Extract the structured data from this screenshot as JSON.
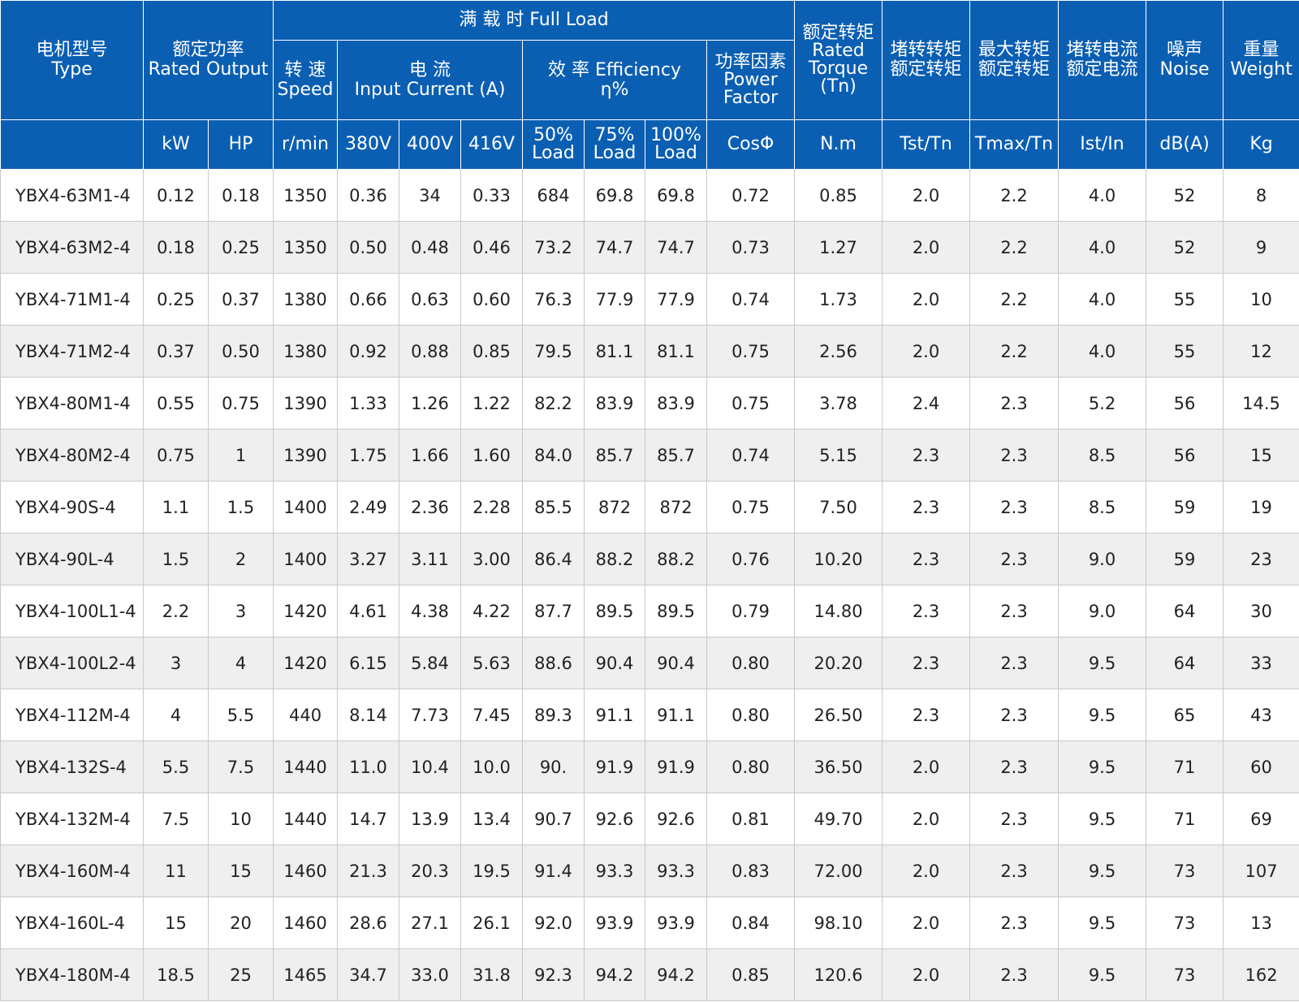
{
  "header": {
    "type": {
      "cn": "电机型号",
      "en": "Type"
    },
    "rated_output": {
      "cn": "额定功率",
      "en": "Rated Output"
    },
    "full_load": "满 载 时  Full Load",
    "speed": {
      "cn": "转 速",
      "en": "Speed"
    },
    "current": {
      "cn": "电 流",
      "en": "Input Current (A)"
    },
    "efficiency": {
      "cn": "效 率 Efficiency",
      "en": "η%"
    },
    "power_factor": {
      "cn": "功率因素",
      "en1": "Power",
      "en2": "Factor"
    },
    "rated_torque": {
      "cn": "额定转矩",
      "en1": "Rated",
      "en2": "Torque",
      "en3": "(Tn)"
    },
    "locked_torque": {
      "l1": "堵转转矩",
      "l2": "额定转矩"
    },
    "max_torque": {
      "l1": "最大转矩",
      "l2": "额定转矩"
    },
    "locked_current": {
      "l1": "堵转电流",
      "l2": "额定电流"
    },
    "noise": {
      "cn": "噪声",
      "en": "Noise"
    },
    "weight": {
      "cn": "重量",
      "en": "Weight"
    },
    "units": {
      "kw": "kW",
      "hp": "HP",
      "rpm": "r/min",
      "v380": "380V",
      "v400": "400V",
      "v416": "416V",
      "load50": {
        "l1": "50%",
        "l2": "Load"
      },
      "load75": {
        "l1": "75%",
        "l2": "Load"
      },
      "load100": {
        "l1": "100%",
        "l2": "Load"
      },
      "cos": "CosΦ",
      "nm": "N.m",
      "tst": "Tst/Tn",
      "tmax": "Tmax/Tn",
      "ist": "Ist/In",
      "dba": "dB(A)",
      "kg": "Kg"
    }
  },
  "rows": [
    [
      "YBX4-63M1-4",
      "0.12",
      "0.18",
      "1350",
      "0.36",
      "34",
      "0.33",
      "684",
      "69.8",
      "69.8",
      "0.72",
      "0.85",
      "2.0",
      "2.2",
      "4.0",
      "52",
      "8"
    ],
    [
      "YBX4-63M2-4",
      "0.18",
      "0.25",
      "1350",
      "0.50",
      "0.48",
      "0.46",
      "73.2",
      "74.7",
      "74.7",
      "0.73",
      "1.27",
      "2.0",
      "2.2",
      "4.0",
      "52",
      "9"
    ],
    [
      "YBX4-71M1-4",
      "0.25",
      "0.37",
      "1380",
      "0.66",
      "0.63",
      "0.60",
      "76.3",
      "77.9",
      "77.9",
      "0.74",
      "1.73",
      "2.0",
      "2.2",
      "4.0",
      "55",
      "10"
    ],
    [
      "YBX4-71M2-4",
      "0.37",
      "0.50",
      "1380",
      "0.92",
      "0.88",
      "0.85",
      "79.5",
      "81.1",
      "81.1",
      "0.75",
      "2.56",
      "2.0",
      "2.2",
      "4.0",
      "55",
      "12"
    ],
    [
      "YBX4-80M1-4",
      "0.55",
      "0.75",
      "1390",
      "1.33",
      "1.26",
      "1.22",
      "82.2",
      "83.9",
      "83.9",
      "0.75",
      "3.78",
      "2.4",
      "2.3",
      "5.2",
      "56",
      "14.5"
    ],
    [
      "YBX4-80M2-4",
      "0.75",
      "1",
      "1390",
      "1.75",
      "1.66",
      "1.60",
      "84.0",
      "85.7",
      "85.7",
      "0.74",
      "5.15",
      "2.3",
      "2.3",
      "8.5",
      "56",
      "15"
    ],
    [
      "YBX4-90S-4",
      "1.1",
      "1.5",
      "1400",
      "2.49",
      "2.36",
      "2.28",
      "85.5",
      "872",
      "872",
      "0.75",
      "7.50",
      "2.3",
      "2.3",
      "8.5",
      "59",
      "19"
    ],
    [
      "YBX4-90L-4",
      "1.5",
      "2",
      "1400",
      "3.27",
      "3.11",
      "3.00",
      "86.4",
      "88.2",
      "88.2",
      "0.76",
      "10.20",
      "2.3",
      "2.3",
      "9.0",
      "59",
      "23"
    ],
    [
      "YBX4-100L1-4",
      "2.2",
      "3",
      "1420",
      "4.61",
      "4.38",
      "4.22",
      "87.7",
      "89.5",
      "89.5",
      "0.79",
      "14.80",
      "2.3",
      "2.3",
      "9.0",
      "64",
      "30"
    ],
    [
      "YBX4-100L2-4",
      "3",
      "4",
      "1420",
      "6.15",
      "5.84",
      "5.63",
      "88.6",
      "90.4",
      "90.4",
      "0.80",
      "20.20",
      "2.3",
      "2.3",
      "9.5",
      "64",
      "33"
    ],
    [
      "YBX4-112M-4",
      "4",
      "5.5",
      "440",
      "8.14",
      "7.73",
      "7.45",
      "89.3",
      "91.1",
      "91.1",
      "0.80",
      "26.50",
      "2.3",
      "2.3",
      "9.5",
      "65",
      "43"
    ],
    [
      "YBX4-132S-4",
      "5.5",
      "7.5",
      "1440",
      "11.0",
      "10.4",
      "10.0",
      "90.",
      "91.9",
      "91.9",
      "0.80",
      "36.50",
      "2.0",
      "2.3",
      "9.5",
      "71",
      "60"
    ],
    [
      "YBX4-132M-4",
      "7.5",
      "10",
      "1440",
      "14.7",
      "13.9",
      "13.4",
      "90.7",
      "92.6",
      "92.6",
      "0.81",
      "49.70",
      "2.0",
      "2.3",
      "9.5",
      "71",
      "69"
    ],
    [
      "YBX4-160M-4",
      "11",
      "15",
      "1460",
      "21.3",
      "20.3",
      "19.5",
      "91.4",
      "93.3",
      "93.3",
      "0.83",
      "72.00",
      "2.0",
      "2.3",
      "9.5",
      "73",
      "107"
    ],
    [
      "YBX4-160L-4",
      "15",
      "20",
      "1460",
      "28.6",
      "27.1",
      "26.1",
      "92.0",
      "93.9",
      "93.9",
      "0.84",
      "98.10",
      "2.0",
      "2.3",
      "9.5",
      "73",
      "13"
    ],
    [
      "YBX4-180M-4",
      "18.5",
      "25",
      "1465",
      "34.7",
      "33.0",
      "31.8",
      "92.3",
      "94.2",
      "94.2",
      "0.85",
      "120.6",
      "2.0",
      "2.3",
      "9.5",
      "73",
      "162"
    ]
  ]
}
